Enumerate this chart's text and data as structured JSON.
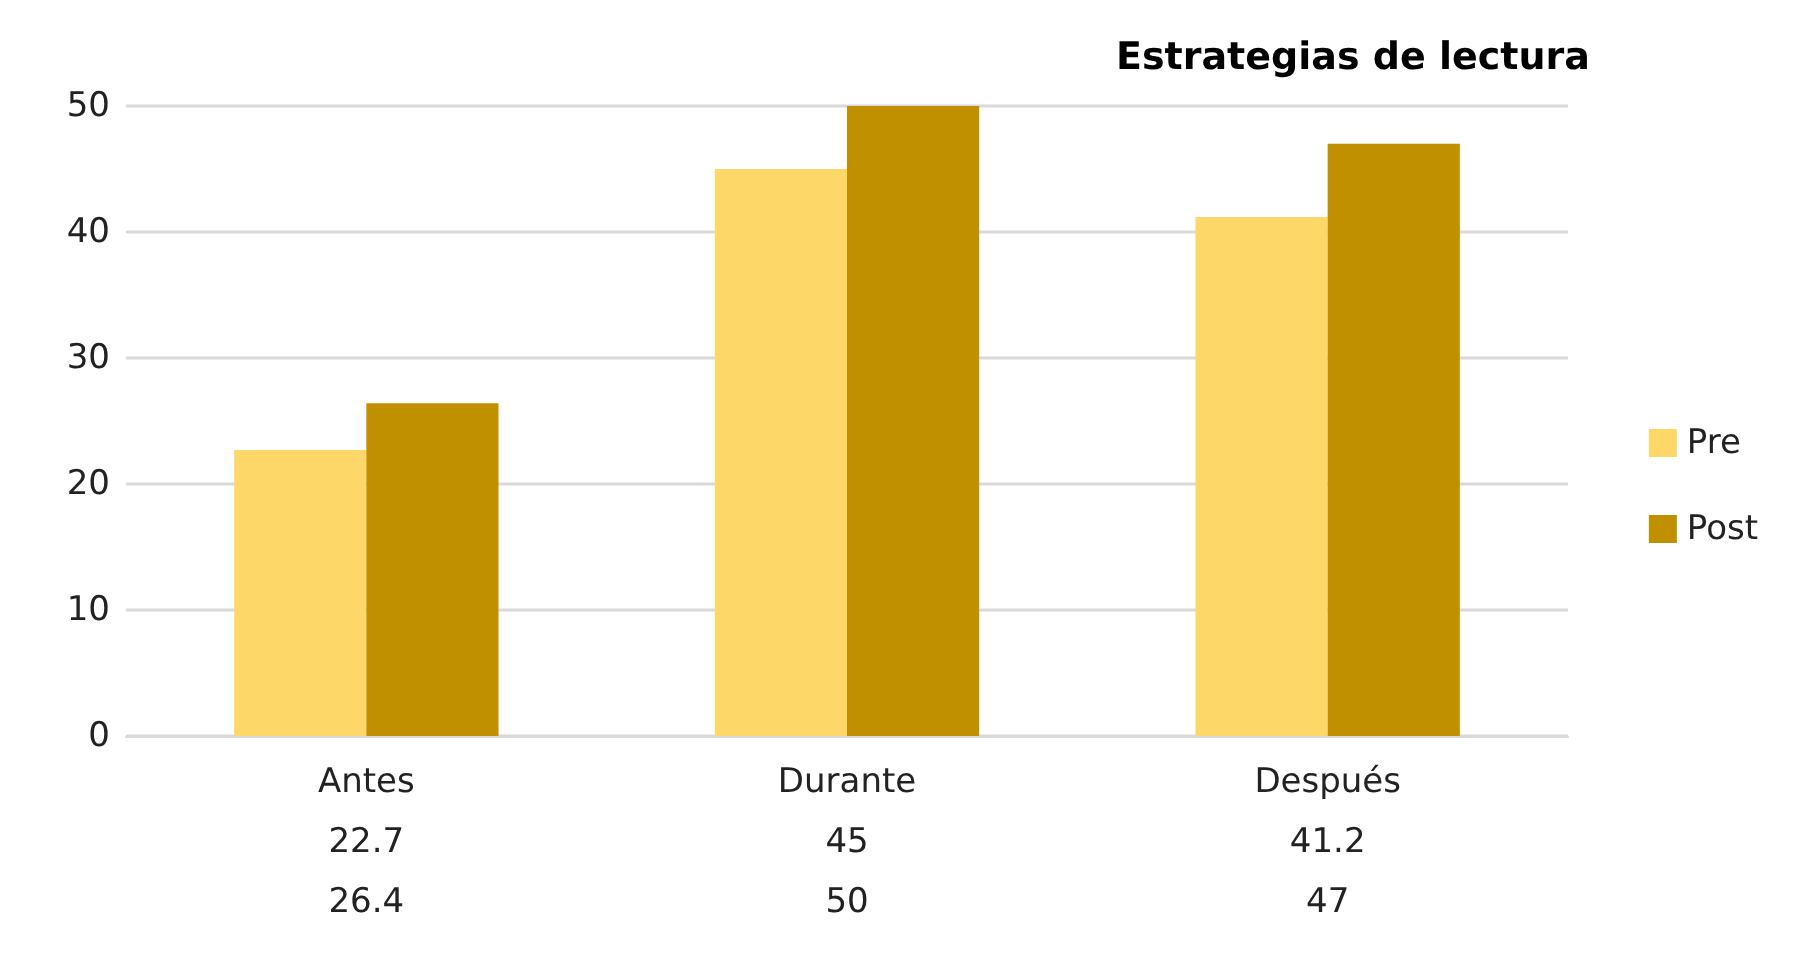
{
  "chart_data": {
    "type": "bar",
    "title": "Estrategias de lectura",
    "categories": [
      "Antes",
      "Durante",
      "Después"
    ],
    "series": [
      {
        "name": "Pre",
        "color": "#fdd868",
        "values": [
          22.7,
          45,
          41.2
        ]
      },
      {
        "name": "Post",
        "color": "#c09000",
        "values": [
          26.4,
          50,
          47
        ]
      }
    ],
    "ylim": [
      0,
      50
    ],
    "yticks": [
      0,
      10,
      20,
      30,
      40,
      50
    ],
    "grid": "y",
    "legend": "right",
    "data_labels": true
  }
}
